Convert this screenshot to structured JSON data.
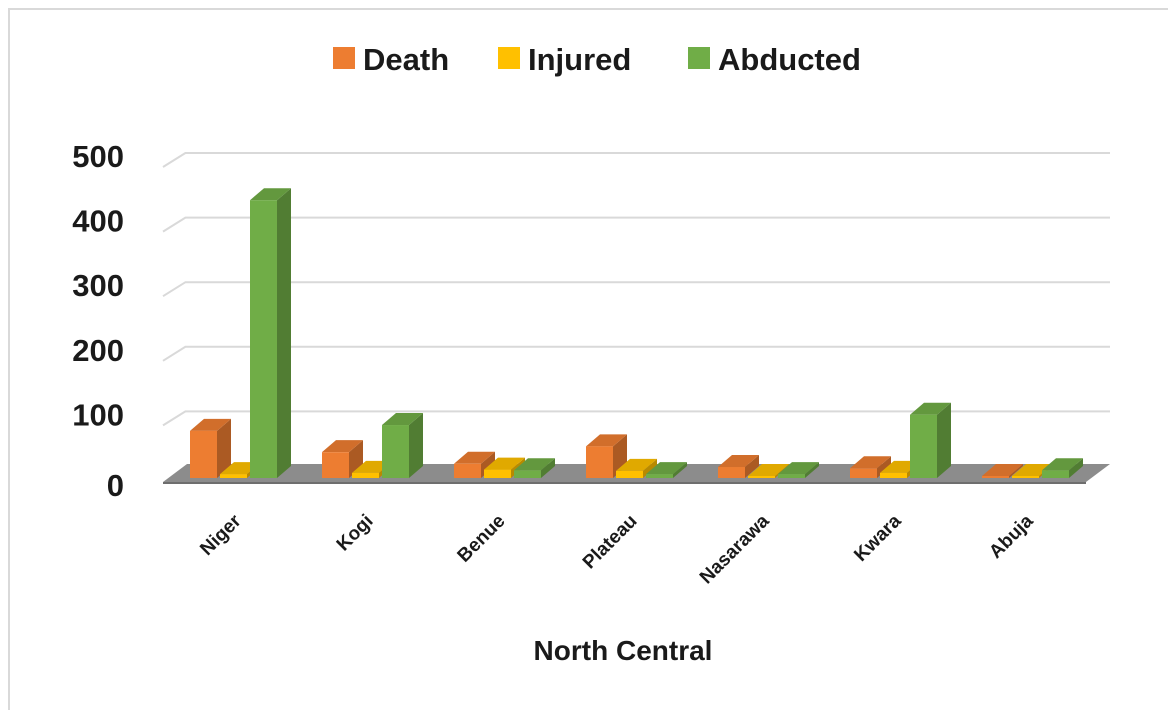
{
  "chart_data": {
    "type": "bar",
    "title": "",
    "xlabel": "North Central",
    "ylabel": "",
    "ylim": [
      0,
      500
    ],
    "yticks": [
      0,
      100,
      200,
      300,
      400,
      500
    ],
    "grid": true,
    "legend_position": "top-center",
    "categories": [
      "Niger",
      "Kogi",
      "Benue",
      "Plateau",
      "Nasarawa",
      "Kwara",
      "Abuja"
    ],
    "series": [
      {
        "name": "Death",
        "color": "#ED7D31",
        "values": [
          73,
          40,
          22,
          49,
          17,
          15,
          2
        ]
      },
      {
        "name": "Injured",
        "color": "#FFC000",
        "values": [
          6,
          8,
          13,
          11,
          0,
          8,
          0
        ]
      },
      {
        "name": "Abducted",
        "color": "#70AD47",
        "values": [
          430,
          82,
          12,
          6,
          6,
          98,
          12
        ]
      }
    ]
  }
}
